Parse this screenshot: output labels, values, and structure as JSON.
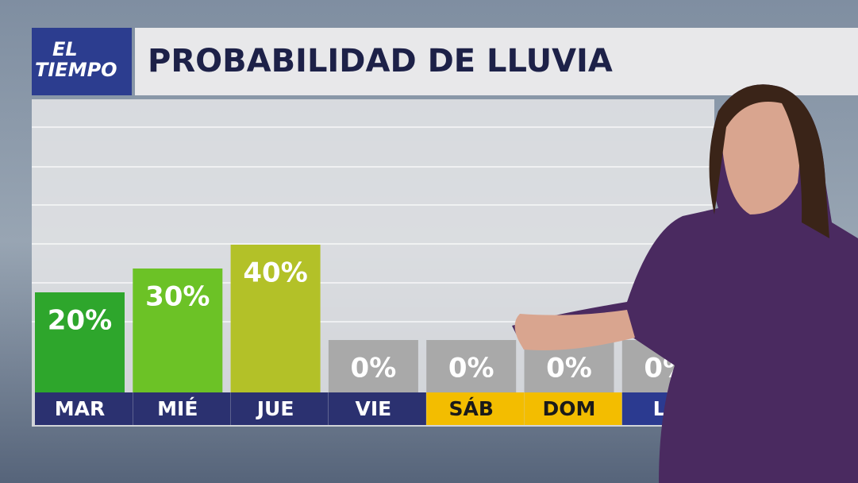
{
  "header": {
    "logo_top": "EL",
    "logo_bottom": "TIEMPO"
  },
  "chart_data": {
    "type": "bar",
    "title": "PROBABILIDAD DE LLUVIA",
    "categories": [
      "MAR",
      "MIÉ",
      "JUE",
      "VIE",
      "SÁB",
      "DOM",
      "LU"
    ],
    "values": [
      20,
      30,
      40,
      0,
      0,
      0,
      0
    ],
    "value_labels": [
      "20%",
      "30%",
      "40%",
      "0%",
      "0%",
      "0%",
      "0%"
    ],
    "colors": [
      "#2ea62c",
      "#6cc226",
      "#b3c128",
      "#a9a9a9",
      "#a9a9a9",
      "#a9a9a9",
      "#a9a9a9"
    ],
    "label_backgrounds": [
      "#2b3170",
      "#2b3170",
      "#2b3170",
      "#2b3170",
      "#f3bd00",
      "#f3bd00",
      "#2b3a90"
    ],
    "label_colors": [
      "#ffffff",
      "#ffffff",
      "#ffffff",
      "#ffffff",
      "#1a1a1a",
      "#1a1a1a",
      "#ffffff"
    ]
  }
}
